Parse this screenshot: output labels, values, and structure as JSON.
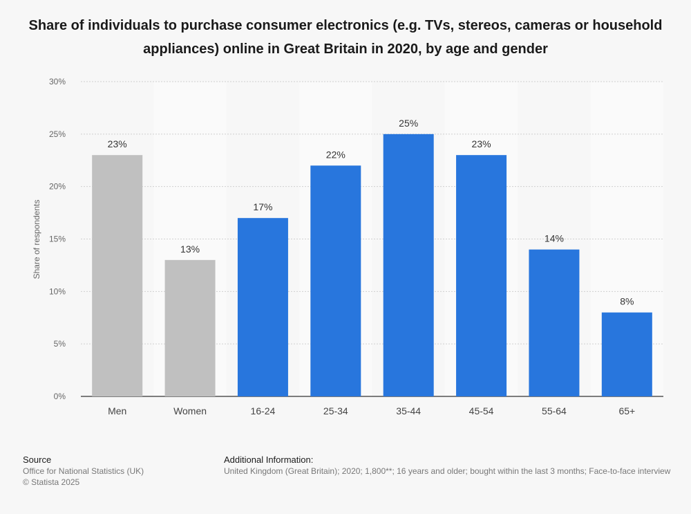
{
  "chart_data": {
    "type": "bar",
    "title": "Share of individuals to purchase consumer electronics (e.g. TVs, stereos, cameras or household appliances) online in Great Britain in 2020, by age and gender",
    "xlabel": "",
    "ylabel": "Share of respondents",
    "ylim": [
      0,
      30
    ],
    "yticks": [
      0,
      5,
      10,
      15,
      20,
      25,
      30
    ],
    "ytick_labels": [
      "0%",
      "5%",
      "10%",
      "15%",
      "20%",
      "25%",
      "30%"
    ],
    "categories": [
      "Men",
      "Women",
      "16-24",
      "25-34",
      "35-44",
      "45-54",
      "55-64",
      "65+"
    ],
    "values": [
      23,
      13,
      17,
      22,
      25,
      23,
      14,
      8
    ],
    "value_labels": [
      "23%",
      "13%",
      "17%",
      "22%",
      "25%",
      "23%",
      "14%",
      "8%"
    ],
    "bar_colors": [
      "#c0c0c0",
      "#c0c0c0",
      "#2876dd",
      "#2876dd",
      "#2876dd",
      "#2876dd",
      "#2876dd",
      "#2876dd"
    ],
    "grid": true
  },
  "footer": {
    "source_heading": "Source",
    "source_line1": "Office for National Statistics (UK)",
    "source_line2": "© Statista 2025",
    "additional_heading": "Additional Information:",
    "additional_text": "United Kingdom (Great Britain); 2020; 1,800**; 16 years and older; bought within the last 3 months; Face-to-face interview"
  }
}
